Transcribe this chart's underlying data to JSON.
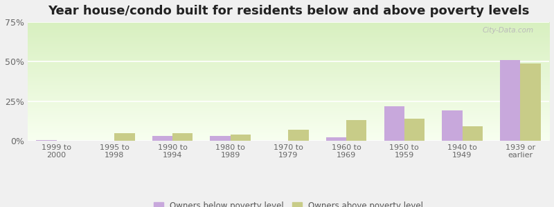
{
  "title": "Year house/condo built for residents below and above poverty levels",
  "categories": [
    "1999 to\n2000",
    "1995 to\n1998",
    "1990 to\n1994",
    "1980 to\n1989",
    "1970 to\n1979",
    "1960 to\n1969",
    "1950 to\n1959",
    "1940 to\n1949",
    "1939 or\nearlier"
  ],
  "below_poverty": [
    0.5,
    0.0,
    3.0,
    3.0,
    0.0,
    2.0,
    22.0,
    19.0,
    51.0
  ],
  "above_poverty": [
    0.0,
    5.0,
    5.0,
    4.0,
    7.0,
    13.0,
    14.0,
    9.0,
    49.0
  ],
  "below_color": "#c8a8dc",
  "above_color": "#c8cc88",
  "outer_bg": "#f0f0f0",
  "plot_bg_top": "#d8f0c0",
  "plot_bg_bottom": "#f8fff0",
  "ylim": [
    0,
    75
  ],
  "yticks": [
    0,
    25,
    50,
    75
  ],
  "ytick_labels": [
    "0%",
    "25%",
    "50%",
    "75%"
  ],
  "grid_color": "#ffffff",
  "title_fontsize": 13,
  "legend_below": "Owners below poverty level",
  "legend_above": "Owners above poverty level",
  "bar_width": 0.35,
  "watermark": "City-Data.com"
}
